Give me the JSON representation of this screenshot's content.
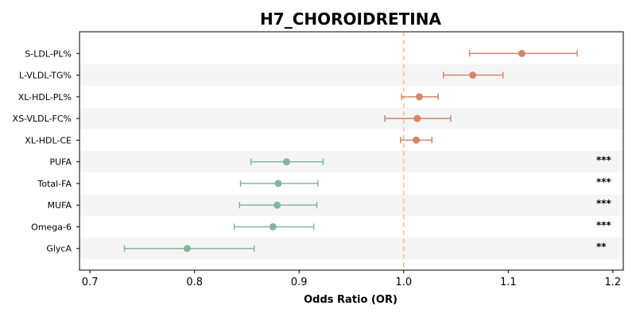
{
  "chart_data": {
    "type": "forest",
    "title": "H7_CHOROIDRETINA",
    "xlabel": "Odds Ratio (OR)",
    "ylabel": "",
    "xlim": [
      0.69,
      1.21
    ],
    "xticks": [
      0.7,
      0.8,
      0.9,
      1.0,
      1.1,
      1.2
    ],
    "reference_line": 1.0,
    "grid": false,
    "colors": {
      "positive": "#d9826a",
      "negative": "#86b59f",
      "reference": "#f5c77e",
      "band": "#f5f5f5"
    },
    "rows": [
      {
        "label": "S-LDL-PL%",
        "or": 1.113,
        "lo": 1.063,
        "hi": 1.166,
        "sig": ""
      },
      {
        "label": "L-VLDL-TG%",
        "or": 1.066,
        "lo": 1.038,
        "hi": 1.095,
        "sig": ""
      },
      {
        "label": "XL-HDL-PL%",
        "or": 1.015,
        "lo": 0.998,
        "hi": 1.033,
        "sig": ""
      },
      {
        "label": "XS-VLDL-FC%",
        "or": 1.013,
        "lo": 0.982,
        "hi": 1.045,
        "sig": ""
      },
      {
        "label": "XL-HDL-CE",
        "or": 1.012,
        "lo": 0.997,
        "hi": 1.027,
        "sig": ""
      },
      {
        "label": "PUFA",
        "or": 0.888,
        "lo": 0.854,
        "hi": 0.923,
        "sig": "***"
      },
      {
        "label": "Total-FA",
        "or": 0.88,
        "lo": 0.844,
        "hi": 0.918,
        "sig": "***"
      },
      {
        "label": "MUFA",
        "or": 0.879,
        "lo": 0.843,
        "hi": 0.917,
        "sig": "***"
      },
      {
        "label": "Omega-6",
        "or": 0.875,
        "lo": 0.838,
        "hi": 0.914,
        "sig": "***"
      },
      {
        "label": "GlycA",
        "or": 0.793,
        "lo": 0.733,
        "hi": 0.857,
        "sig": "**"
      }
    ]
  }
}
